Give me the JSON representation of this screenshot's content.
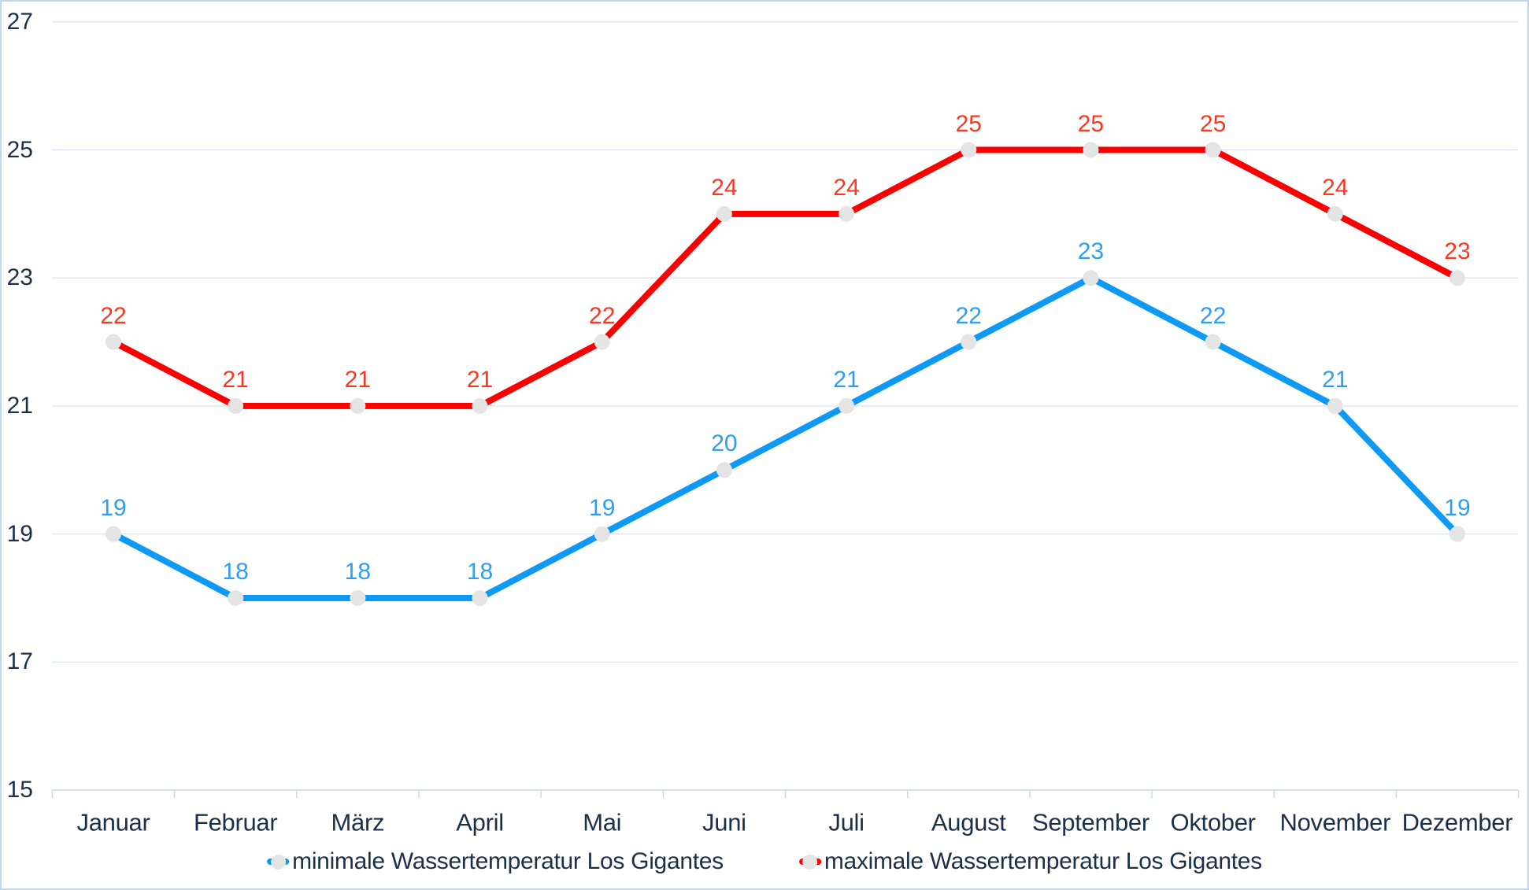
{
  "chart_data": {
    "type": "line",
    "title": "",
    "categories": [
      "Januar",
      "Februar",
      "März",
      "April",
      "Mai",
      "Juni",
      "Juli",
      "August",
      "September",
      "Oktober",
      "November",
      "Dezember"
    ],
    "series": [
      {
        "name": "minimale Wassertemperatur Los Gigantes",
        "values": [
          19,
          18,
          18,
          18,
          19,
          20,
          21,
          22,
          23,
          22,
          21,
          19
        ],
        "line_color": "#0E9AF4",
        "label_color": "#2E9FF0"
      },
      {
        "name": "maximale Wassertemperatur Los Gigantes",
        "values": [
          22,
          21,
          21,
          21,
          22,
          24,
          24,
          25,
          25,
          25,
          24,
          23
        ],
        "line_color": "#FA0000",
        "label_color": "#FA3821"
      }
    ],
    "y_axis": {
      "min": 15,
      "max": 27,
      "tick_step": 2,
      "ticks": [
        27,
        25,
        23,
        21,
        19,
        17,
        15
      ]
    },
    "x_axis": {
      "ticks_between_categories": true
    },
    "legend_position": "bottom",
    "grid": true,
    "data_labels": "above-points",
    "colors": {
      "marker_fill": "#E4E4E4",
      "gridline": "#D9E5F1",
      "axis_line": "#C7D9E8",
      "tick_mark": "#C7D9E8",
      "axis_text": "#1B3047",
      "frame_border": "#BDD7EE",
      "background": "#FFFFFF"
    }
  }
}
